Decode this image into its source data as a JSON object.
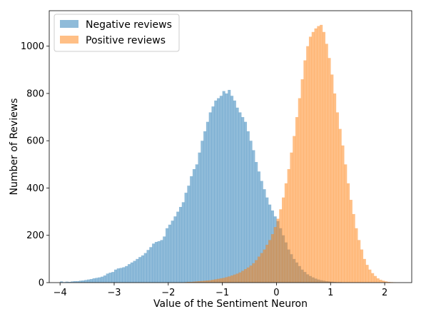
{
  "chart_data": {
    "type": "histogram",
    "title": "",
    "xlabel": "Value of the Sentiment Neuron",
    "ylabel": "Number of Reviews",
    "xlim": [
      -4.2,
      2.5
    ],
    "ylim": [
      0,
      1150
    ],
    "xticks": [
      -4,
      -3,
      -2,
      -1,
      0,
      1,
      2
    ],
    "xtick_labels": [
      "−4",
      "−3",
      "−2",
      "−1",
      "0",
      "1",
      "2"
    ],
    "yticks": [
      0,
      200,
      400,
      600,
      800,
      1000
    ],
    "ytick_labels": [
      "0",
      "200",
      "400",
      "600",
      "800",
      "1000"
    ],
    "grid": false,
    "legend_position": "top-left",
    "bin_width": 0.05,
    "series": [
      {
        "name": "Negative reviews",
        "color": "#1f77b4",
        "alpha": 0.5,
        "bins": [
          [
            -4.0,
            5
          ],
          [
            -3.95,
            2
          ],
          [
            -3.9,
            4
          ],
          [
            -3.85,
            3
          ],
          [
            -3.8,
            5
          ],
          [
            -3.75,
            6
          ],
          [
            -3.7,
            6
          ],
          [
            -3.65,
            8
          ],
          [
            -3.6,
            9
          ],
          [
            -3.55,
            11
          ],
          [
            -3.5,
            13
          ],
          [
            -3.45,
            15
          ],
          [
            -3.4,
            18
          ],
          [
            -3.35,
            20
          ],
          [
            -3.3,
            22
          ],
          [
            -3.25,
            25
          ],
          [
            -3.2,
            30
          ],
          [
            -3.15,
            38
          ],
          [
            -3.1,
            42
          ],
          [
            -3.05,
            45
          ],
          [
            -3.0,
            55
          ],
          [
            -2.95,
            60
          ],
          [
            -2.9,
            62
          ],
          [
            -2.85,
            65
          ],
          [
            -2.8,
            70
          ],
          [
            -2.75,
            78
          ],
          [
            -2.7,
            85
          ],
          [
            -2.65,
            92
          ],
          [
            -2.6,
            100
          ],
          [
            -2.55,
            108
          ],
          [
            -2.5,
            115
          ],
          [
            -2.45,
            125
          ],
          [
            -2.4,
            138
          ],
          [
            -2.35,
            150
          ],
          [
            -2.3,
            165
          ],
          [
            -2.25,
            172
          ],
          [
            -2.2,
            175
          ],
          [
            -2.15,
            180
          ],
          [
            -2.1,
            195
          ],
          [
            -2.05,
            230
          ],
          [
            -2.0,
            245
          ],
          [
            -1.95,
            262
          ],
          [
            -1.9,
            280
          ],
          [
            -1.85,
            300
          ],
          [
            -1.8,
            320
          ],
          [
            -1.75,
            340
          ],
          [
            -1.7,
            380
          ],
          [
            -1.65,
            410
          ],
          [
            -1.6,
            450
          ],
          [
            -1.55,
            480
          ],
          [
            -1.5,
            500
          ],
          [
            -1.45,
            550
          ],
          [
            -1.4,
            600
          ],
          [
            -1.35,
            640
          ],
          [
            -1.3,
            680
          ],
          [
            -1.25,
            720
          ],
          [
            -1.2,
            745
          ],
          [
            -1.15,
            770
          ],
          [
            -1.1,
            780
          ],
          [
            -1.05,
            790
          ],
          [
            -1.0,
            810
          ],
          [
            -0.95,
            800
          ],
          [
            -0.9,
            815
          ],
          [
            -0.85,
            790
          ],
          [
            -0.8,
            770
          ],
          [
            -0.75,
            740
          ],
          [
            -0.7,
            720
          ],
          [
            -0.65,
            700
          ],
          [
            -0.6,
            680
          ],
          [
            -0.55,
            640
          ],
          [
            -0.5,
            600
          ],
          [
            -0.45,
            560
          ],
          [
            -0.4,
            510
          ],
          [
            -0.35,
            470
          ],
          [
            -0.3,
            430
          ],
          [
            -0.25,
            395
          ],
          [
            -0.2,
            360
          ],
          [
            -0.15,
            330
          ],
          [
            -0.1,
            305
          ],
          [
            -0.05,
            280
          ],
          [
            0.0,
            260
          ],
          [
            0.05,
            230
          ],
          [
            0.1,
            200
          ],
          [
            0.15,
            170
          ],
          [
            0.2,
            140
          ],
          [
            0.25,
            120
          ],
          [
            0.3,
            100
          ],
          [
            0.35,
            85
          ],
          [
            0.4,
            70
          ],
          [
            0.45,
            55
          ],
          [
            0.5,
            45
          ],
          [
            0.55,
            35
          ],
          [
            0.6,
            28
          ],
          [
            0.65,
            22
          ],
          [
            0.7,
            17
          ],
          [
            0.75,
            13
          ],
          [
            0.8,
            10
          ],
          [
            0.85,
            8
          ],
          [
            0.9,
            6
          ],
          [
            0.95,
            5
          ],
          [
            1.0,
            4
          ],
          [
            1.05,
            3
          ],
          [
            1.1,
            2
          ],
          [
            1.15,
            2
          ],
          [
            1.2,
            1
          ],
          [
            1.25,
            1
          ],
          [
            1.3,
            1
          ]
        ]
      },
      {
        "name": "Positive reviews",
        "color": "#ff7f0e",
        "alpha": 0.5,
        "bins": [
          [
            -1.7,
            2
          ],
          [
            -1.65,
            3
          ],
          [
            -1.6,
            3
          ],
          [
            -1.55,
            4
          ],
          [
            -1.5,
            5
          ],
          [
            -1.45,
            6
          ],
          [
            -1.4,
            7
          ],
          [
            -1.35,
            8
          ],
          [
            -1.3,
            9
          ],
          [
            -1.25,
            10
          ],
          [
            -1.2,
            12
          ],
          [
            -1.15,
            14
          ],
          [
            -1.1,
            16
          ],
          [
            -1.05,
            18
          ],
          [
            -1.0,
            20
          ],
          [
            -0.95,
            23
          ],
          [
            -0.9,
            26
          ],
          [
            -0.85,
            30
          ],
          [
            -0.8,
            34
          ],
          [
            -0.75,
            38
          ],
          [
            -0.7,
            43
          ],
          [
            -0.65,
            50
          ],
          [
            -0.6,
            57
          ],
          [
            -0.55,
            64
          ],
          [
            -0.5,
            72
          ],
          [
            -0.45,
            82
          ],
          [
            -0.4,
            95
          ],
          [
            -0.35,
            110
          ],
          [
            -0.3,
            125
          ],
          [
            -0.25,
            140
          ],
          [
            -0.2,
            160
          ],
          [
            -0.15,
            180
          ],
          [
            -0.1,
            205
          ],
          [
            -0.05,
            235
          ],
          [
            0.0,
            270
          ],
          [
            0.05,
            310
          ],
          [
            0.1,
            360
          ],
          [
            0.15,
            420
          ],
          [
            0.2,
            480
          ],
          [
            0.25,
            550
          ],
          [
            0.3,
            620
          ],
          [
            0.35,
            700
          ],
          [
            0.4,
            780
          ],
          [
            0.45,
            860
          ],
          [
            0.5,
            940
          ],
          [
            0.55,
            1000
          ],
          [
            0.6,
            1040
          ],
          [
            0.65,
            1060
          ],
          [
            0.7,
            1075
          ],
          [
            0.75,
            1085
          ],
          [
            0.8,
            1090
          ],
          [
            0.85,
            1060
          ],
          [
            0.9,
            1010
          ],
          [
            0.95,
            950
          ],
          [
            1.0,
            880
          ],
          [
            1.05,
            800
          ],
          [
            1.1,
            720
          ],
          [
            1.15,
            650
          ],
          [
            1.2,
            580
          ],
          [
            1.25,
            500
          ],
          [
            1.3,
            420
          ],
          [
            1.35,
            350
          ],
          [
            1.4,
            290
          ],
          [
            1.45,
            230
          ],
          [
            1.5,
            180
          ],
          [
            1.55,
            140
          ],
          [
            1.6,
            100
          ],
          [
            1.65,
            75
          ],
          [
            1.7,
            55
          ],
          [
            1.75,
            40
          ],
          [
            1.8,
            28
          ],
          [
            1.85,
            18
          ],
          [
            1.9,
            12
          ],
          [
            1.95,
            8
          ],
          [
            2.0,
            5
          ],
          [
            2.05,
            3
          ],
          [
            2.1,
            2
          ],
          [
            2.15,
            1
          ]
        ]
      }
    ]
  }
}
